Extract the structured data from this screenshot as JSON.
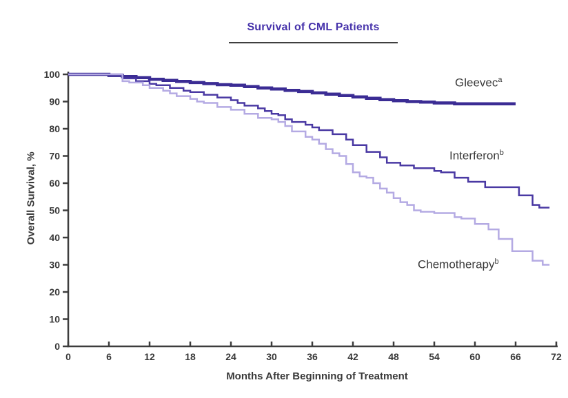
{
  "theme": {
    "background": "#ffffff",
    "title_color": "#4733ab",
    "underline_color": "#3f3f3f",
    "text_color": "#3a3a3a",
    "axis_color": "#3d3d3d",
    "tick_label_color": "#383838"
  },
  "chart_data": {
    "type": "line",
    "subtype": "kaplan-meier-step",
    "title": "Survival of CML Patients",
    "xlabel": "Months After Beginning of Treatment",
    "ylabel": "Overall Survival, %",
    "xlim": [
      0,
      72
    ],
    "ylim": [
      0,
      100
    ],
    "x_ticks": [
      0,
      6,
      12,
      18,
      24,
      30,
      36,
      42,
      48,
      54,
      60,
      66,
      72
    ],
    "y_ticks": [
      0,
      10,
      20,
      30,
      40,
      50,
      60,
      70,
      80,
      90,
      100
    ],
    "grid": false,
    "legend_position": "inline-annotations",
    "series": [
      {
        "name": "Gleevec",
        "superscript": "a",
        "color": "#3b2c94",
        "line_width": 4.5,
        "points": [
          [
            0,
            100
          ],
          [
            5,
            100
          ],
          [
            6,
            99.6
          ],
          [
            8,
            99.2
          ],
          [
            10,
            98.8
          ],
          [
            12,
            98.2
          ],
          [
            14,
            97.8
          ],
          [
            16,
            97.4
          ],
          [
            18,
            97
          ],
          [
            20,
            96.6
          ],
          [
            22,
            96.2
          ],
          [
            24,
            96
          ],
          [
            26,
            95.5
          ],
          [
            28,
            95
          ],
          [
            30,
            94.6
          ],
          [
            32,
            94.1
          ],
          [
            34,
            93.7
          ],
          [
            36,
            93.2
          ],
          [
            38,
            92.7
          ],
          [
            40,
            92.2
          ],
          [
            42,
            91.7
          ],
          [
            44,
            91.2
          ],
          [
            46,
            90.7
          ],
          [
            48,
            90.3
          ],
          [
            50,
            90
          ],
          [
            52,
            89.8
          ],
          [
            54,
            89.5
          ],
          [
            57,
            89.2
          ],
          [
            66,
            89.2
          ]
        ]
      },
      {
        "name": "Interferon",
        "superscript": "b",
        "color": "#4a39a3",
        "line_width": 2.5,
        "points": [
          [
            0,
            100
          ],
          [
            7,
            100
          ],
          [
            8,
            98.5
          ],
          [
            10,
            97.5
          ],
          [
            12,
            96.5
          ],
          [
            13,
            96
          ],
          [
            15,
            95
          ],
          [
            17,
            94
          ],
          [
            18,
            93.5
          ],
          [
            20,
            92.5
          ],
          [
            22,
            91.5
          ],
          [
            24,
            90.5
          ],
          [
            25,
            89.5
          ],
          [
            26,
            88.5
          ],
          [
            28,
            87.5
          ],
          [
            29,
            86.5
          ],
          [
            30,
            85.5
          ],
          [
            31,
            85
          ],
          [
            32,
            83.5
          ],
          [
            33,
            82.5
          ],
          [
            35,
            81.5
          ],
          [
            36,
            80.5
          ],
          [
            37,
            79.5
          ],
          [
            39,
            78
          ],
          [
            41,
            76
          ],
          [
            42,
            74
          ],
          [
            44,
            71.5
          ],
          [
            46,
            69.5
          ],
          [
            47,
            67.5
          ],
          [
            49,
            66.5
          ],
          [
            51,
            65.5
          ],
          [
            54,
            64.5
          ],
          [
            55,
            64
          ],
          [
            57,
            62
          ],
          [
            59,
            60.5
          ],
          [
            61.5,
            58.5
          ],
          [
            66.5,
            55.5
          ],
          [
            68.5,
            52
          ],
          [
            69.5,
            51
          ],
          [
            71,
            51
          ]
        ]
      },
      {
        "name": "Chemotherapy",
        "superscript": "b",
        "color": "#b4aae3",
        "line_width": 2.5,
        "points": [
          [
            0,
            100
          ],
          [
            7,
            100
          ],
          [
            8,
            97.5
          ],
          [
            9,
            97
          ],
          [
            11,
            96
          ],
          [
            12,
            95
          ],
          [
            14,
            94
          ],
          [
            15,
            93
          ],
          [
            16,
            92
          ],
          [
            18,
            91
          ],
          [
            19,
            90
          ],
          [
            20,
            89.5
          ],
          [
            22,
            88
          ],
          [
            24,
            87
          ],
          [
            26,
            85.5
          ],
          [
            28,
            84
          ],
          [
            30,
            83.5
          ],
          [
            31,
            82.5
          ],
          [
            32,
            81
          ],
          [
            33,
            79
          ],
          [
            35,
            77
          ],
          [
            36,
            76
          ],
          [
            37,
            74.5
          ],
          [
            38,
            72.5
          ],
          [
            39,
            71
          ],
          [
            40,
            70
          ],
          [
            41,
            67
          ],
          [
            42,
            64
          ],
          [
            43,
            62.5
          ],
          [
            44,
            62
          ],
          [
            45,
            60
          ],
          [
            46,
            58
          ],
          [
            47,
            56.5
          ],
          [
            48,
            54.5
          ],
          [
            49,
            53
          ],
          [
            50,
            52
          ],
          [
            51,
            50
          ],
          [
            52,
            49.5
          ],
          [
            54,
            49
          ],
          [
            57,
            47.5
          ],
          [
            58,
            47
          ],
          [
            60,
            45
          ],
          [
            62,
            43
          ],
          [
            63.5,
            39.5
          ],
          [
            65.5,
            35
          ],
          [
            68.5,
            31.5
          ],
          [
            70,
            30
          ],
          [
            71,
            30
          ]
        ]
      }
    ]
  }
}
